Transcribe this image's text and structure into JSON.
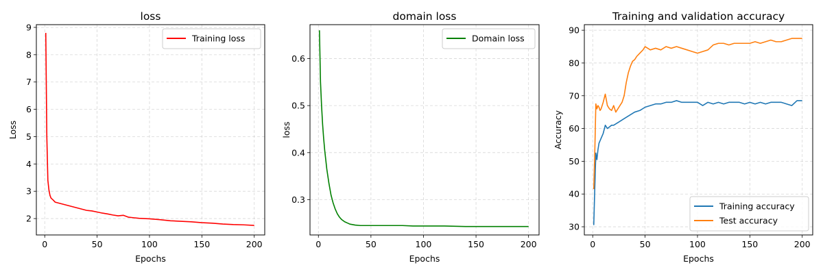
{
  "chart_data": [
    {
      "type": "line",
      "title": "loss",
      "xlabel": "Epochs",
      "ylabel": "Loss",
      "xlim": [
        -8,
        210
      ],
      "ylim": [
        1.4,
        9.1
      ],
      "xticks": [
        0,
        50,
        100,
        150,
        200
      ],
      "yticks": [
        2,
        3,
        4,
        5,
        6,
        7,
        8,
        9
      ],
      "grid": true,
      "legend": "upper right",
      "series": [
        {
          "name": "Training loss",
          "color": "#ff0000",
          "x": [
            1,
            2,
            3,
            4,
            5,
            6,
            8,
            10,
            15,
            20,
            25,
            30,
            35,
            40,
            45,
            50,
            55,
            60,
            65,
            70,
            75,
            80,
            85,
            90,
            95,
            100,
            110,
            120,
            130,
            140,
            150,
            160,
            170,
            180,
            190,
            200
          ],
          "y": [
            8.8,
            5.0,
            3.4,
            3.05,
            2.85,
            2.75,
            2.68,
            2.6,
            2.55,
            2.5,
            2.45,
            2.4,
            2.35,
            2.3,
            2.28,
            2.24,
            2.2,
            2.17,
            2.13,
            2.1,
            2.12,
            2.05,
            2.03,
            2.01,
            2.0,
            1.99,
            1.96,
            1.92,
            1.9,
            1.88,
            1.85,
            1.83,
            1.8,
            1.78,
            1.77,
            1.75
          ]
        }
      ]
    },
    {
      "type": "line",
      "title": "domain loss",
      "xlabel": "Epochs",
      "ylabel": "loss",
      "xlim": [
        -8,
        210
      ],
      "ylim": [
        0.225,
        0.672
      ],
      "xticks": [
        0,
        50,
        100,
        150,
        200
      ],
      "yticks": [
        0.3,
        0.4,
        0.5,
        0.6
      ],
      "grid": true,
      "legend": "upper right",
      "series": [
        {
          "name": "Domain loss",
          "color": "#008000",
          "x": [
            1,
            2,
            3,
            4,
            5,
            6,
            7,
            8,
            10,
            12,
            14,
            16,
            18,
            20,
            22,
            25,
            28,
            30,
            35,
            40,
            50,
            60,
            70,
            80,
            90,
            100,
            120,
            140,
            160,
            180,
            200
          ],
          "y": [
            0.66,
            0.55,
            0.5,
            0.46,
            0.43,
            0.405,
            0.385,
            0.365,
            0.335,
            0.31,
            0.293,
            0.28,
            0.27,
            0.263,
            0.258,
            0.253,
            0.25,
            0.248,
            0.246,
            0.245,
            0.245,
            0.245,
            0.245,
            0.245,
            0.244,
            0.244,
            0.244,
            0.243,
            0.243,
            0.243,
            0.243
          ]
        }
      ]
    },
    {
      "type": "line",
      "title": "Training and validation accuracy",
      "xlabel": "Epochs",
      "ylabel": "Accuracy",
      "xlim": [
        -8,
        210
      ],
      "ylim": [
        27.5,
        91.7
      ],
      "xticks": [
        0,
        50,
        100,
        150,
        200
      ],
      "yticks": [
        30,
        40,
        50,
        60,
        70,
        80,
        90
      ],
      "grid": true,
      "legend": "lower right",
      "series": [
        {
          "name": "Training accuracy",
          "color": "#1f77b4",
          "x": [
            1,
            2,
            3,
            4,
            5,
            6,
            8,
            10,
            12,
            14,
            16,
            18,
            20,
            25,
            30,
            35,
            40,
            45,
            50,
            55,
            60,
            65,
            70,
            75,
            80,
            85,
            90,
            95,
            100,
            105,
            110,
            115,
            120,
            125,
            130,
            135,
            140,
            145,
            150,
            155,
            160,
            165,
            170,
            175,
            180,
            185,
            190,
            195,
            200
          ],
          "y": [
            30.5,
            42,
            52.5,
            50.5,
            53.5,
            55.5,
            57,
            58.5,
            61,
            60,
            60.5,
            61,
            61,
            62,
            63,
            64,
            65,
            65.5,
            66.5,
            67,
            67.5,
            67.5,
            68,
            68,
            68.5,
            68,
            68,
            68,
            68,
            67,
            68,
            67.5,
            68,
            67.5,
            68,
            68,
            68,
            67.5,
            68,
            67.5,
            68,
            67.5,
            68,
            68,
            68,
            67.5,
            67,
            68.5,
            68.5
          ]
        },
        {
          "name": "Test accuracy",
          "color": "#ff7f0e",
          "x": [
            1,
            2,
            3,
            4,
            5,
            6,
            7,
            8,
            10,
            12,
            14,
            16,
            18,
            20,
            22,
            24,
            26,
            28,
            30,
            32,
            34,
            36,
            38,
            40,
            42,
            45,
            48,
            50,
            55,
            60,
            65,
            70,
            75,
            80,
            85,
            90,
            95,
            100,
            105,
            110,
            115,
            120,
            125,
            130,
            135,
            140,
            145,
            150,
            155,
            160,
            165,
            170,
            175,
            180,
            185,
            190,
            195,
            200
          ],
          "y": [
            41.5,
            53,
            67.5,
            66,
            67,
            66.5,
            65.5,
            66,
            68,
            70.5,
            67,
            66,
            65.5,
            67,
            65,
            66,
            67,
            68,
            70,
            74,
            77,
            79,
            80.5,
            81,
            82,
            83,
            84,
            85,
            84,
            84.5,
            84,
            85,
            84.5,
            85,
            84.5,
            84,
            83.5,
            83,
            83.5,
            84,
            85.5,
            86,
            86,
            85.5,
            86,
            86,
            86,
            86,
            86.5,
            86,
            86.5,
            87,
            86.5,
            86.5,
            87,
            87.5,
            87.5,
            87.5
          ]
        }
      ]
    }
  ]
}
